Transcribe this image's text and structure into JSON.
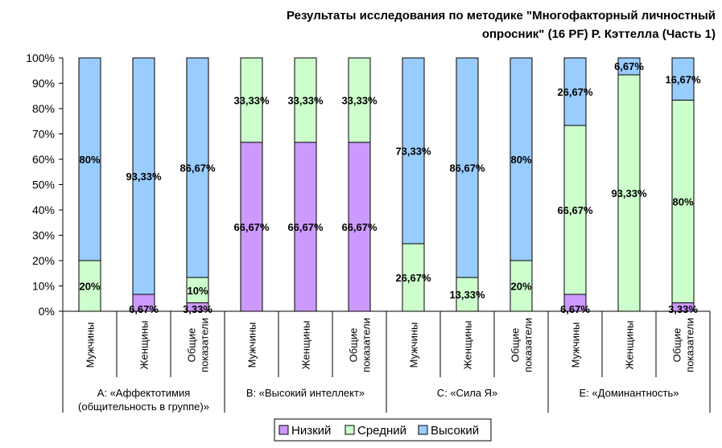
{
  "chart_data": {
    "type": "bar",
    "stacked": true,
    "percent": true,
    "title_lines": [
      "Результаты исследования по методике \"Многофакторный личностный",
      "опросник\" (16 PF) Р. Кэттелла (Часть 1)"
    ],
    "ylim": [
      0,
      100
    ],
    "yticks": [
      "0%",
      "10%",
      "20%",
      "30%",
      "40%",
      "50%",
      "60%",
      "70%",
      "80%",
      "90%",
      "100%"
    ],
    "groups": [
      {
        "label_lines": [
          "A: «Аффектотимия",
          "(общительность в группе)»"
        ],
        "categories": [
          [
            "Мужчины"
          ],
          [
            "Женщины"
          ],
          [
            "Общие",
            "показатели"
          ]
        ]
      },
      {
        "label_lines": [
          "B: «Высокий интеллект»"
        ],
        "categories": [
          [
            "Мужчины"
          ],
          [
            "Женщины"
          ],
          [
            "Общие",
            "показатели"
          ]
        ]
      },
      {
        "label_lines": [
          "C: «Сила Я»"
        ],
        "categories": [
          [
            "Мужчины"
          ],
          [
            "Женщины"
          ],
          [
            "Общие",
            "показатели"
          ]
        ]
      },
      {
        "label_lines": [
          "E: «Доминантность»"
        ],
        "categories": [
          [
            "Мужчины"
          ],
          [
            "Женщины"
          ],
          [
            "Общие",
            "показатели"
          ]
        ]
      }
    ],
    "series": [
      {
        "name": "Низкий",
        "color": "#cc99ff",
        "values": [
          0,
          6.67,
          3.33,
          66.67,
          66.67,
          66.67,
          0,
          0,
          0,
          6.67,
          0,
          3.33
        ],
        "labels": [
          "",
          "6,67%",
          "3,33%",
          "66,67%",
          "66,67%",
          "66,67%",
          "",
          "",
          "",
          "6,67%",
          "",
          "3,33%"
        ]
      },
      {
        "name": "Средний",
        "color": "#ccffcc",
        "values": [
          20,
          0,
          10,
          33.33,
          33.33,
          33.33,
          26.67,
          13.33,
          20,
          66.67,
          93.33,
          80
        ],
        "labels": [
          "20%",
          "",
          "10%",
          "33,33%",
          "33,33%",
          "33,33%",
          "26,67%",
          "13,33%",
          "20%",
          "66,67%",
          "93,33%",
          "80%"
        ]
      },
      {
        "name": "Высокий",
        "color": "#99ccff",
        "values": [
          80,
          93.33,
          86.67,
          0,
          0,
          0,
          73.33,
          86.67,
          80,
          26.67,
          6.67,
          16.67
        ],
        "labels": [
          "80%",
          "93,33%",
          "86,67%",
          "",
          "",
          "",
          "73,33%",
          "86,67%",
          "80%",
          "26,67%",
          "6,67%",
          "16,67%"
        ]
      }
    ],
    "legend_position": "bottom",
    "grid": false
  }
}
